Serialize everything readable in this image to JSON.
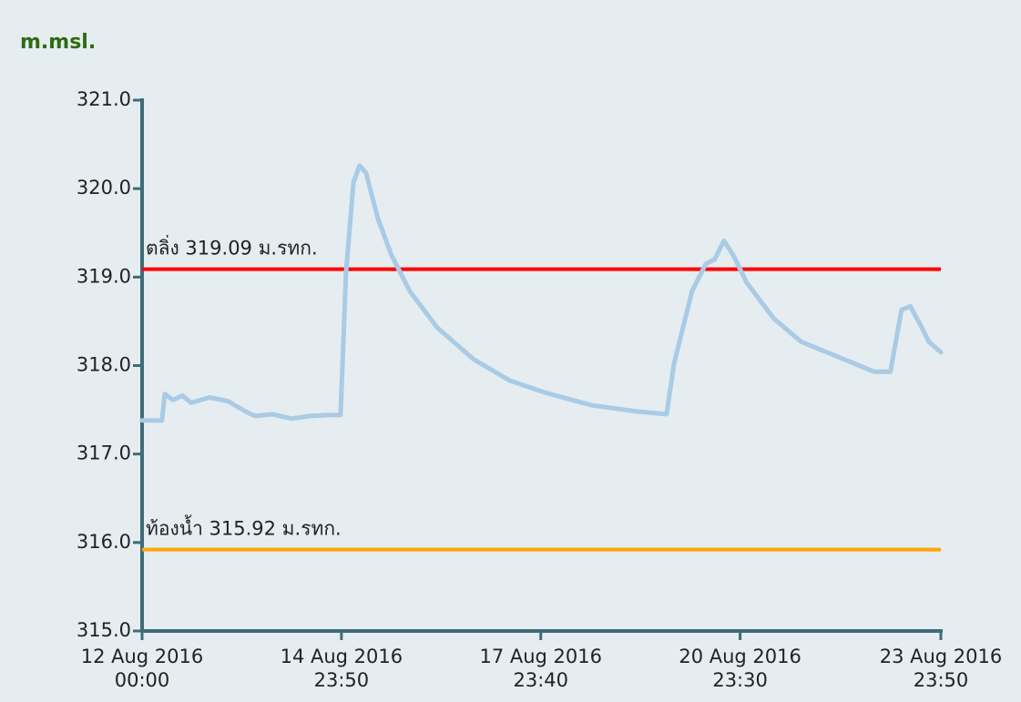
{
  "chart_data": {
    "type": "line",
    "y_axis_label": "m.msl.",
    "x": [
      "2016-08-12 00:00",
      "2016-08-12 07:10",
      "2016-08-12 08:10",
      "2016-08-12 11:10",
      "2016-08-12 14:30",
      "2016-08-12 17:40",
      "2016-08-13 00:20",
      "2016-08-13 06:50",
      "2016-08-13 13:20",
      "2016-08-13 16:40",
      "2016-08-13 23:10",
      "2016-08-14 05:50",
      "2016-08-14 12:20",
      "2016-08-14 19:00",
      "2016-08-14 23:30",
      "2016-08-15 01:30",
      "2016-08-15 04:10",
      "2016-08-15 06:20",
      "2016-08-15 08:40",
      "2016-08-15 13:00",
      "2016-08-15 17:50",
      "2016-08-16 00:30",
      "2016-08-16 10:20",
      "2016-08-16 23:30",
      "2016-08-17 12:30",
      "2016-08-18 01:40",
      "2016-08-18 18:10",
      "2016-08-19 10:30",
      "2016-08-19 21:00",
      "2016-08-19 23:40",
      "2016-08-20 06:10",
      "2016-08-20 11:10",
      "2016-08-20 14:20",
      "2016-08-20 17:40",
      "2016-08-20 21:00",
      "2016-08-21 01:50",
      "2016-08-21 11:40",
      "2016-08-21 21:30",
      "2016-08-22 10:40",
      "2016-08-22 23:50",
      "2016-08-23 05:40",
      "2016-08-23 09:40",
      "2016-08-23 12:50",
      "2016-08-23 16:10",
      "2016-08-23 19:30",
      "2016-08-23 23:50"
    ],
    "series": [
      {
        "color": "#a9cbe5",
        "values": [
          317.38,
          317.38,
          317.68,
          317.61,
          317.66,
          317.58,
          317.64,
          317.6,
          317.48,
          317.43,
          317.45,
          317.4,
          317.43,
          317.44,
          317.44,
          319.05,
          320.07,
          320.26,
          320.18,
          319.66,
          319.25,
          318.84,
          318.43,
          318.07,
          317.83,
          317.69,
          317.55,
          317.48,
          317.45,
          318.02,
          318.84,
          319.15,
          319.2,
          319.41,
          319.25,
          318.94,
          318.53,
          318.27,
          318.1,
          317.93,
          317.93,
          318.63,
          318.67,
          318.48,
          318.27,
          318.15
        ]
      }
    ],
    "xlim": [
      "2016-08-12 00:00",
      "2016-08-23 23:50"
    ],
    "xticks": [
      {
        "value": "2016-08-12 00:00",
        "label": "12 Aug 2016\n00:00"
      },
      {
        "value": "2016-08-14 23:50",
        "label": "14 Aug 2016\n23:50"
      },
      {
        "value": "2016-08-17 23:40",
        "label": "17 Aug 2016\n23:40"
      },
      {
        "value": "2016-08-20 23:30",
        "label": "20 Aug 2016\n23:30"
      },
      {
        "value": "2016-08-23 23:50",
        "label": "23 Aug 2016\n23:50"
      }
    ],
    "ylim": [
      315,
      321
    ],
    "yticks": [
      {
        "value": 315,
        "label": "315.0"
      },
      {
        "value": 316,
        "label": "316.0"
      },
      {
        "value": 317,
        "label": "317.0"
      },
      {
        "value": 318,
        "label": "318.0"
      },
      {
        "value": 319,
        "label": "319.0"
      },
      {
        "value": 320,
        "label": "320.0"
      },
      {
        "value": 321,
        "label": "321.0"
      }
    ],
    "reference_lines": [
      {
        "value": 319.09,
        "label": "ตลิ่ง 319.09 ม.รทก.",
        "color": "#ff0000"
      },
      {
        "value": 315.92,
        "label": "ท้องน้ำ 315.92 ม.รทก.",
        "color": "#ffa500"
      }
    ]
  }
}
